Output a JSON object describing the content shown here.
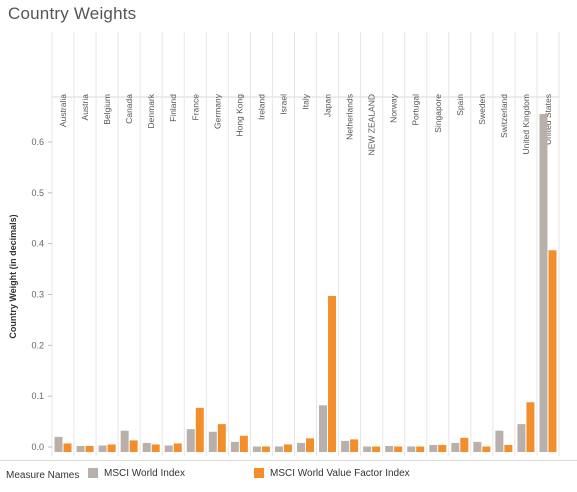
{
  "title": "Country Weights",
  "legend": {
    "title": "Measure Names",
    "items": [
      {
        "label": "MSCI World Index",
        "color": "#b9b0ab"
      },
      {
        "label": "MSCI World Value Factor Index",
        "color": "#f28e2b"
      }
    ]
  },
  "chart_data": {
    "type": "bar",
    "ylabel": "Country Weight (in decimals)",
    "xlabel": "",
    "ylim": [
      -0.01,
      0.7
    ],
    "yticks": [
      0.0,
      0.1,
      0.2,
      0.3,
      0.4,
      0.5,
      0.6
    ],
    "ytick_labels": [
      "0.0",
      "0.1",
      "0.2",
      "0.3",
      "0.4",
      "0.5",
      "0.6"
    ],
    "grid": false,
    "legend_position": "bottom",
    "categories": [
      "Australia",
      "Austria",
      "Belgium",
      "Canada",
      "Denmark",
      "Finland",
      "France",
      "Germany",
      "Hong Kong",
      "Ireland",
      "Israel",
      "Italy",
      "Japan",
      "Netherlands",
      "NEW ZEALAND",
      "Norway",
      "Portugal",
      "Singapore",
      "Spain",
      "Sweden",
      "Switzerland",
      "United Kingdom",
      "United States"
    ],
    "series": [
      {
        "name": "MSCI World Index",
        "color": "#b9b0ab",
        "values": [
          0.02,
          0.002,
          0.003,
          0.032,
          0.008,
          0.003,
          0.035,
          0.03,
          0.01,
          0.001,
          0.001,
          0.008,
          0.082,
          0.012,
          0.001,
          0.002,
          0.001,
          0.004,
          0.008,
          0.01,
          0.032,
          0.045,
          0.655
        ]
      },
      {
        "name": "MSCI World Value Factor Index",
        "color": "#f28e2b",
        "values": [
          0.007,
          0.002,
          0.005,
          0.013,
          0.005,
          0.007,
          0.077,
          0.045,
          0.022,
          0.001,
          0.005,
          0.017,
          0.297,
          0.015,
          0.001,
          0.001,
          0.001,
          0.004,
          0.018,
          0.001,
          0.004,
          0.088,
          0.387
        ]
      }
    ]
  }
}
